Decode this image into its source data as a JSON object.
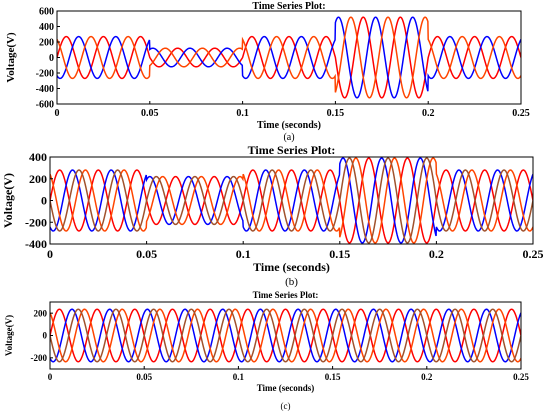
{
  "chart_data": [
    {
      "type": "line",
      "caption": "(a)",
      "title": "Time Series Plot:",
      "xlabel": "Time (seconds)",
      "ylabel": "Voltage(V)",
      "xlim": [
        0,
        0.25
      ],
      "ylim": [
        -600,
        600
      ],
      "xticks": [
        "0",
        "0.05",
        "0.1",
        "0.15",
        "0.2",
        "0.25"
      ],
      "yticks": [
        "600",
        "400",
        "200",
        "0",
        "-200",
        "-400",
        "-600"
      ],
      "frequency_hz": 50,
      "segments": [
        {
          "t_start": 0,
          "t_end": 0.05,
          "amplitude": 270
        },
        {
          "t_start": 0.05,
          "t_end": 0.1,
          "amplitude": 120
        },
        {
          "t_start": 0.1,
          "t_end": 0.15,
          "amplitude": 270
        },
        {
          "t_start": 0.15,
          "t_end": 0.2,
          "amplitude": 520
        },
        {
          "t_start": 0.2,
          "t_end": 0.25,
          "amplitude": 270
        }
      ],
      "series": [
        {
          "phase_deg": 0,
          "color": "#ff0000"
        },
        {
          "phase_deg": -120,
          "color": "#0000ff"
        },
        {
          "phase_deg": 120,
          "color": "#ff4500"
        }
      ]
    },
    {
      "type": "line",
      "caption": "(b)",
      "title": "Time Series Plot:",
      "xlabel": "Time (seconds)",
      "ylabel": "Voltage(V)",
      "xlim": [
        0,
        0.25
      ],
      "ylim": [
        -400,
        400
      ],
      "xticks": [
        "0",
        "0.05",
        "0.1",
        "0.15",
        "0.2",
        "0.25"
      ],
      "yticks": [
        "400",
        "200",
        "0",
        "-200",
        "-400"
      ],
      "frequency_hz": 50,
      "segments": [
        {
          "t_start": 0,
          "t_end": 0.05,
          "amplitude": 280
        },
        {
          "t_start": 0.05,
          "t_end": 0.1,
          "amplitude": 220
        },
        {
          "t_start": 0.1,
          "t_end": 0.15,
          "amplitude": 280
        },
        {
          "t_start": 0.15,
          "t_end": 0.2,
          "amplitude": 390
        },
        {
          "t_start": 0.2,
          "t_end": 0.25,
          "amplitude": 280
        }
      ],
      "series": [
        {
          "phase_deg": 0,
          "color": "#ff0000"
        },
        {
          "phase_deg": -120,
          "color": "#0000ff"
        },
        {
          "phase_deg": 120,
          "color": "#ff4500"
        },
        {
          "phase_deg": 180,
          "color": "#a0522d"
        }
      ]
    },
    {
      "type": "line",
      "caption": "(c)",
      "title": "Time Series Plot:",
      "xlabel": "Time (seconds)",
      "ylabel": "Voltage(V)",
      "xlim": [
        0,
        0.25
      ],
      "ylim": [
        -300,
        300
      ],
      "xticks": [
        "0",
        "0.05",
        "0.1",
        "0.15",
        "0.2",
        "0.25"
      ],
      "yticks": [
        "200",
        "0",
        "-200"
      ],
      "frequency_hz": 50,
      "segments": [
        {
          "t_start": 0,
          "t_end": 0.25,
          "amplitude": 235
        }
      ],
      "series": [
        {
          "phase_deg": 0,
          "color": "#ff0000"
        },
        {
          "phase_deg": -120,
          "color": "#0000ff"
        },
        {
          "phase_deg": 120,
          "color": "#ff4500"
        },
        {
          "phase_deg": 180,
          "color": "#a0522d"
        }
      ]
    }
  ]
}
